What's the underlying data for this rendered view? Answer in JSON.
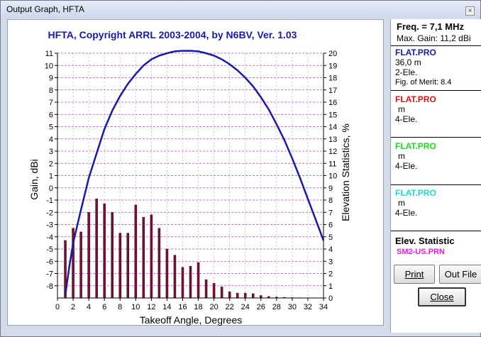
{
  "window": {
    "title": "Output Graph, HFTA",
    "close_glyph": "×"
  },
  "chart_data": {
    "type": "bar+line",
    "title": "HFTA, Copyright ARRL 2003-2004, by N6BV, Ver. 1.03",
    "xlabel": "Takeoff Angle, Degrees",
    "ylabel_left": "Gain, dBi",
    "ylabel_right": "Elevation Statistics, %",
    "xlim": [
      0,
      34
    ],
    "ylim_left": [
      -9,
      11
    ],
    "ylim_right": [
      0,
      20
    ],
    "x_ticks": [
      "0",
      "2",
      "4",
      "6",
      "8",
      "10",
      "12",
      "14",
      "16",
      "18",
      "20",
      "22",
      "24",
      "26",
      "28",
      "30",
      "32",
      "34"
    ],
    "y_ticks_left": [
      "11",
      "10",
      "9",
      "8",
      "7",
      "6",
      "5",
      "4",
      "3",
      "2",
      "1",
      "0",
      "-1",
      "-2",
      "-3",
      "-4",
      "-5",
      "-6",
      "-7",
      "-8"
    ],
    "y_ticks_right": [
      "20",
      "19",
      "18",
      "17",
      "16",
      "15",
      "14",
      "13",
      "12",
      "11",
      "10",
      "9",
      "8",
      "7",
      "6",
      "5",
      "4",
      "3",
      "2",
      "1",
      "0"
    ],
    "grid": true,
    "series": [
      {
        "name": "FLAT.PRO 2-Ele.",
        "kind": "line",
        "axis": "left",
        "color": "#1a1aa8",
        "x": [
          1,
          1.5,
          2,
          3,
          4,
          5,
          6,
          7,
          8,
          9,
          10,
          11,
          12,
          13,
          14,
          15,
          16,
          17,
          18,
          19,
          20,
          21,
          22,
          23,
          24,
          25,
          26,
          27,
          28,
          29,
          30,
          31,
          32,
          33,
          34
        ],
        "y": [
          -8.8,
          -6.5,
          -4.5,
          -1.8,
          0.8,
          2.8,
          4.8,
          6.3,
          7.5,
          8.5,
          9.3,
          10.0,
          10.5,
          10.8,
          11.0,
          11.15,
          11.2,
          11.2,
          11.15,
          11.0,
          10.8,
          10.5,
          10.1,
          9.6,
          9.0,
          8.3,
          7.4,
          6.4,
          5.2,
          3.9,
          2.4,
          0.8,
          -0.9,
          -2.6,
          -4.3
        ]
      },
      {
        "name": "SM2-US.PRN",
        "kind": "bar",
        "axis": "right",
        "color": "#7a1030",
        "x": [
          1,
          2,
          3,
          4,
          5,
          6,
          7,
          8,
          9,
          10,
          11,
          12,
          13,
          14,
          15,
          16,
          17,
          18,
          19,
          20,
          21,
          22,
          23,
          24,
          25,
          26,
          27,
          28,
          29,
          30,
          31
        ],
        "values": [
          4.7,
          5.7,
          5.4,
          7.0,
          8.1,
          7.7,
          7.0,
          5.3,
          5.3,
          7.6,
          6.6,
          6.8,
          5.7,
          4.0,
          3.5,
          2.5,
          2.6,
          2.9,
          1.5,
          1.2,
          0.9,
          0.5,
          0.4,
          0.4,
          0.35,
          0.2,
          0.12,
          0.08,
          0.05,
          0.03,
          0.02
        ]
      }
    ]
  },
  "sidebar": {
    "freq": "Freq. = 7,1 MHz",
    "max_gain": "Max. Gain: 11,2 dBi",
    "antennas": [
      {
        "file": "FLAT.PRO",
        "height": "36,0 m",
        "elements": "2-Ele.",
        "merit": "Fig. of Merit:  8.4",
        "color": "#1a1aa8"
      },
      {
        "file": "FLAT.PRO",
        "height": "m",
        "elements": "4-Ele.",
        "color": "#d01818"
      },
      {
        "file": "FLAT.PRO",
        "height": "m",
        "elements": "4-Ele.",
        "color": "#22d822"
      },
      {
        "file": "FLAT.PRO",
        "height": "m",
        "elements": "4-Ele.",
        "color": "#20d8d8"
      }
    ],
    "elev_title": "Elev. Statistic",
    "elev_file": "SM2-US.PRN"
  },
  "buttons": {
    "print": "Print",
    "out_file": "Out File",
    "close": "Close"
  }
}
